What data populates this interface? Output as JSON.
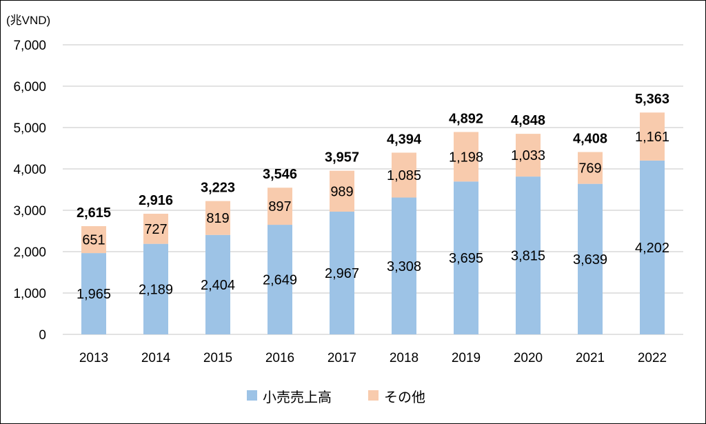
{
  "chart_data": {
    "type": "bar",
    "stacked": true,
    "unit_label": "(兆VND)",
    "categories": [
      "2013",
      "2014",
      "2015",
      "2016",
      "2017",
      "2018",
      "2019",
      "2020",
      "2021",
      "2022"
    ],
    "series": [
      {
        "name": "小売売上高",
        "color": "#9DC3E6",
        "values": [
          1965,
          2189,
          2404,
          2649,
          2967,
          3308,
          3695,
          3815,
          3639,
          4202
        ],
        "labels": [
          "1,965",
          "2,189",
          "2,404",
          "2,649",
          "2,967",
          "3,308",
          "3,695",
          "3,815",
          "3,639",
          "4,202"
        ]
      },
      {
        "name": "その他",
        "color": "#F8CBAD",
        "values": [
          651,
          727,
          819,
          897,
          989,
          1085,
          1198,
          1033,
          769,
          1161
        ],
        "labels": [
          "651",
          "727",
          "819",
          "897",
          "989",
          "1,085",
          "1,198",
          "1,033",
          "769",
          "1,161"
        ]
      }
    ],
    "totals": [
      2615,
      2916,
      3223,
      3546,
      3957,
      4394,
      4892,
      4848,
      4408,
      5363
    ],
    "total_labels": [
      "2,615",
      "2,916",
      "3,223",
      "3,546",
      "3,957",
      "4,394",
      "4,892",
      "4,848",
      "4,408",
      "5,363"
    ],
    "ylim": [
      0,
      7000
    ],
    "yticks": [
      0,
      1000,
      2000,
      3000,
      4000,
      5000,
      6000,
      7000
    ],
    "ytick_labels": [
      "0",
      "1,000",
      "2,000",
      "3,000",
      "4,000",
      "5,000",
      "6,000",
      "7,000"
    ],
    "grid": true,
    "grid_color": "#D9D9D9",
    "legend_position": "bottom"
  }
}
